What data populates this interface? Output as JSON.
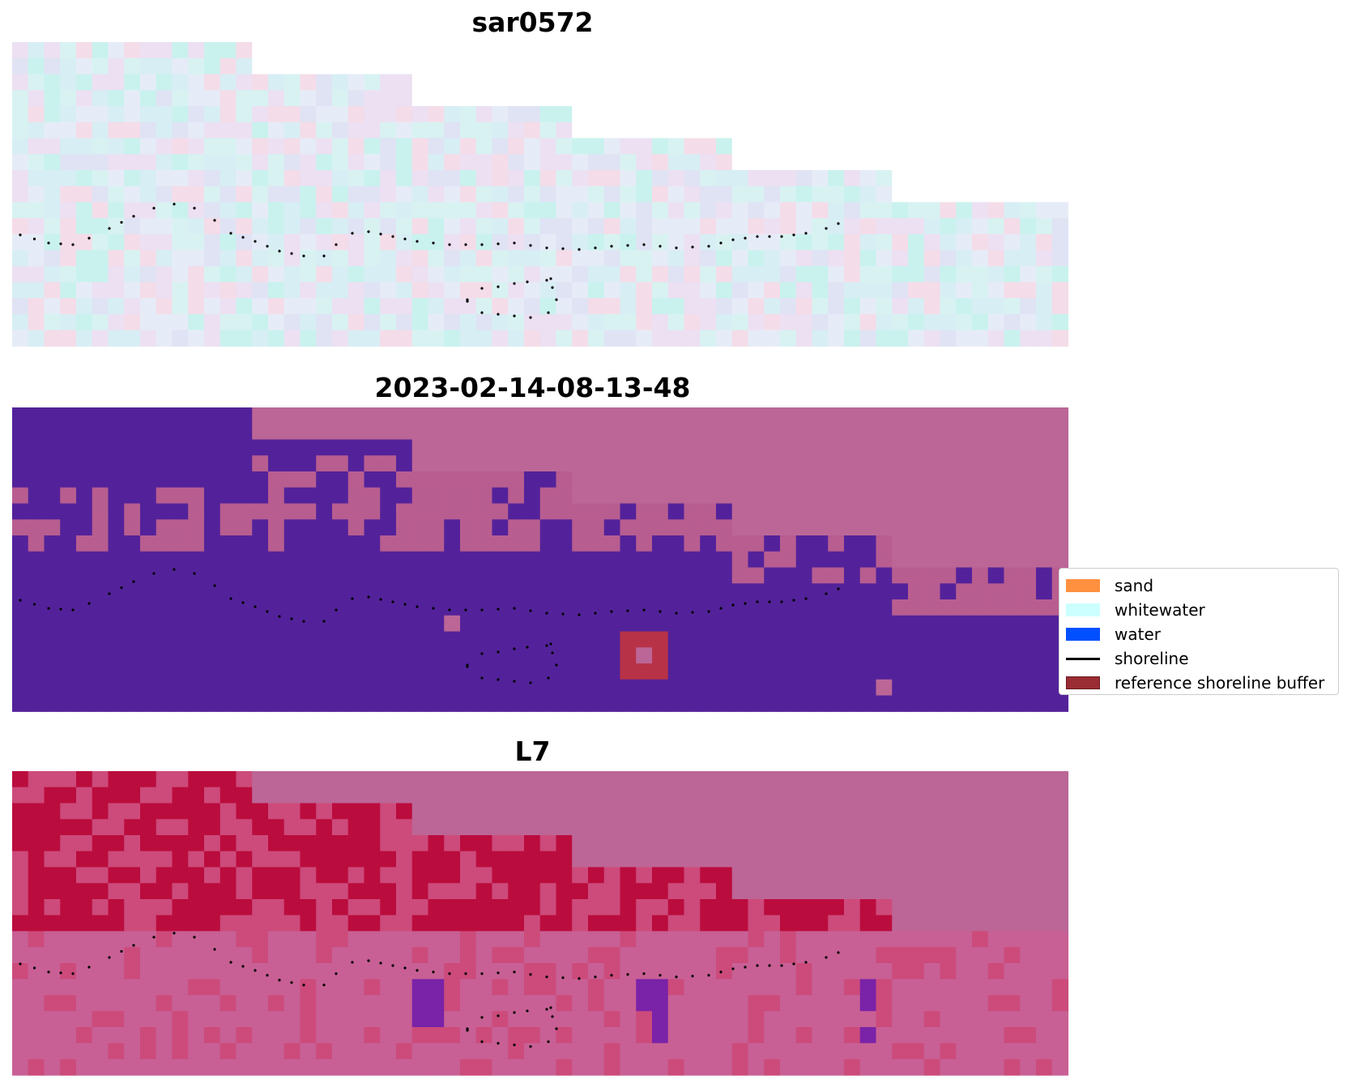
{
  "chart_data": [
    {
      "type": "heatmap",
      "title": "sar0572",
      "grid": false,
      "colors": {
        "palette": [
          "#dfe3f4",
          "#d7eef4",
          "#c9f2ee",
          "#ece0f2",
          "#f4dce8",
          "#d8f2f2",
          "#e6ecf7"
        ]
      }
    },
    {
      "type": "heatmap",
      "title": "2023-02-14-08-13-48",
      "grid": false,
      "colors": {
        "water_class": "#53229a",
        "land_class": "#bc6697",
        "mixed_class": "#b85d90",
        "reference_buffer": "#b83247"
      }
    },
    {
      "type": "heatmap",
      "title": "L7",
      "grid": false,
      "colors": {
        "dark": "#bb0c3e",
        "mid": "#cc4b7a",
        "light": "#c86095",
        "purple": "#7a22a8"
      }
    }
  ],
  "legend": {
    "placement": "right",
    "items": [
      {
        "label": "sand",
        "color": "#ff9040",
        "kind": "patch"
      },
      {
        "label": "whitewater",
        "color": "#ccffff",
        "kind": "patch"
      },
      {
        "label": "water",
        "color": "#0050ff",
        "kind": "patch"
      },
      {
        "label": "shoreline",
        "color": "#000000",
        "kind": "line"
      },
      {
        "label": "reference shoreline buffer",
        "color": "#9a2c33",
        "kind": "patch"
      }
    ]
  },
  "colors": {
    "nodata": "#bc6697",
    "shoreline_points": "#000000"
  }
}
